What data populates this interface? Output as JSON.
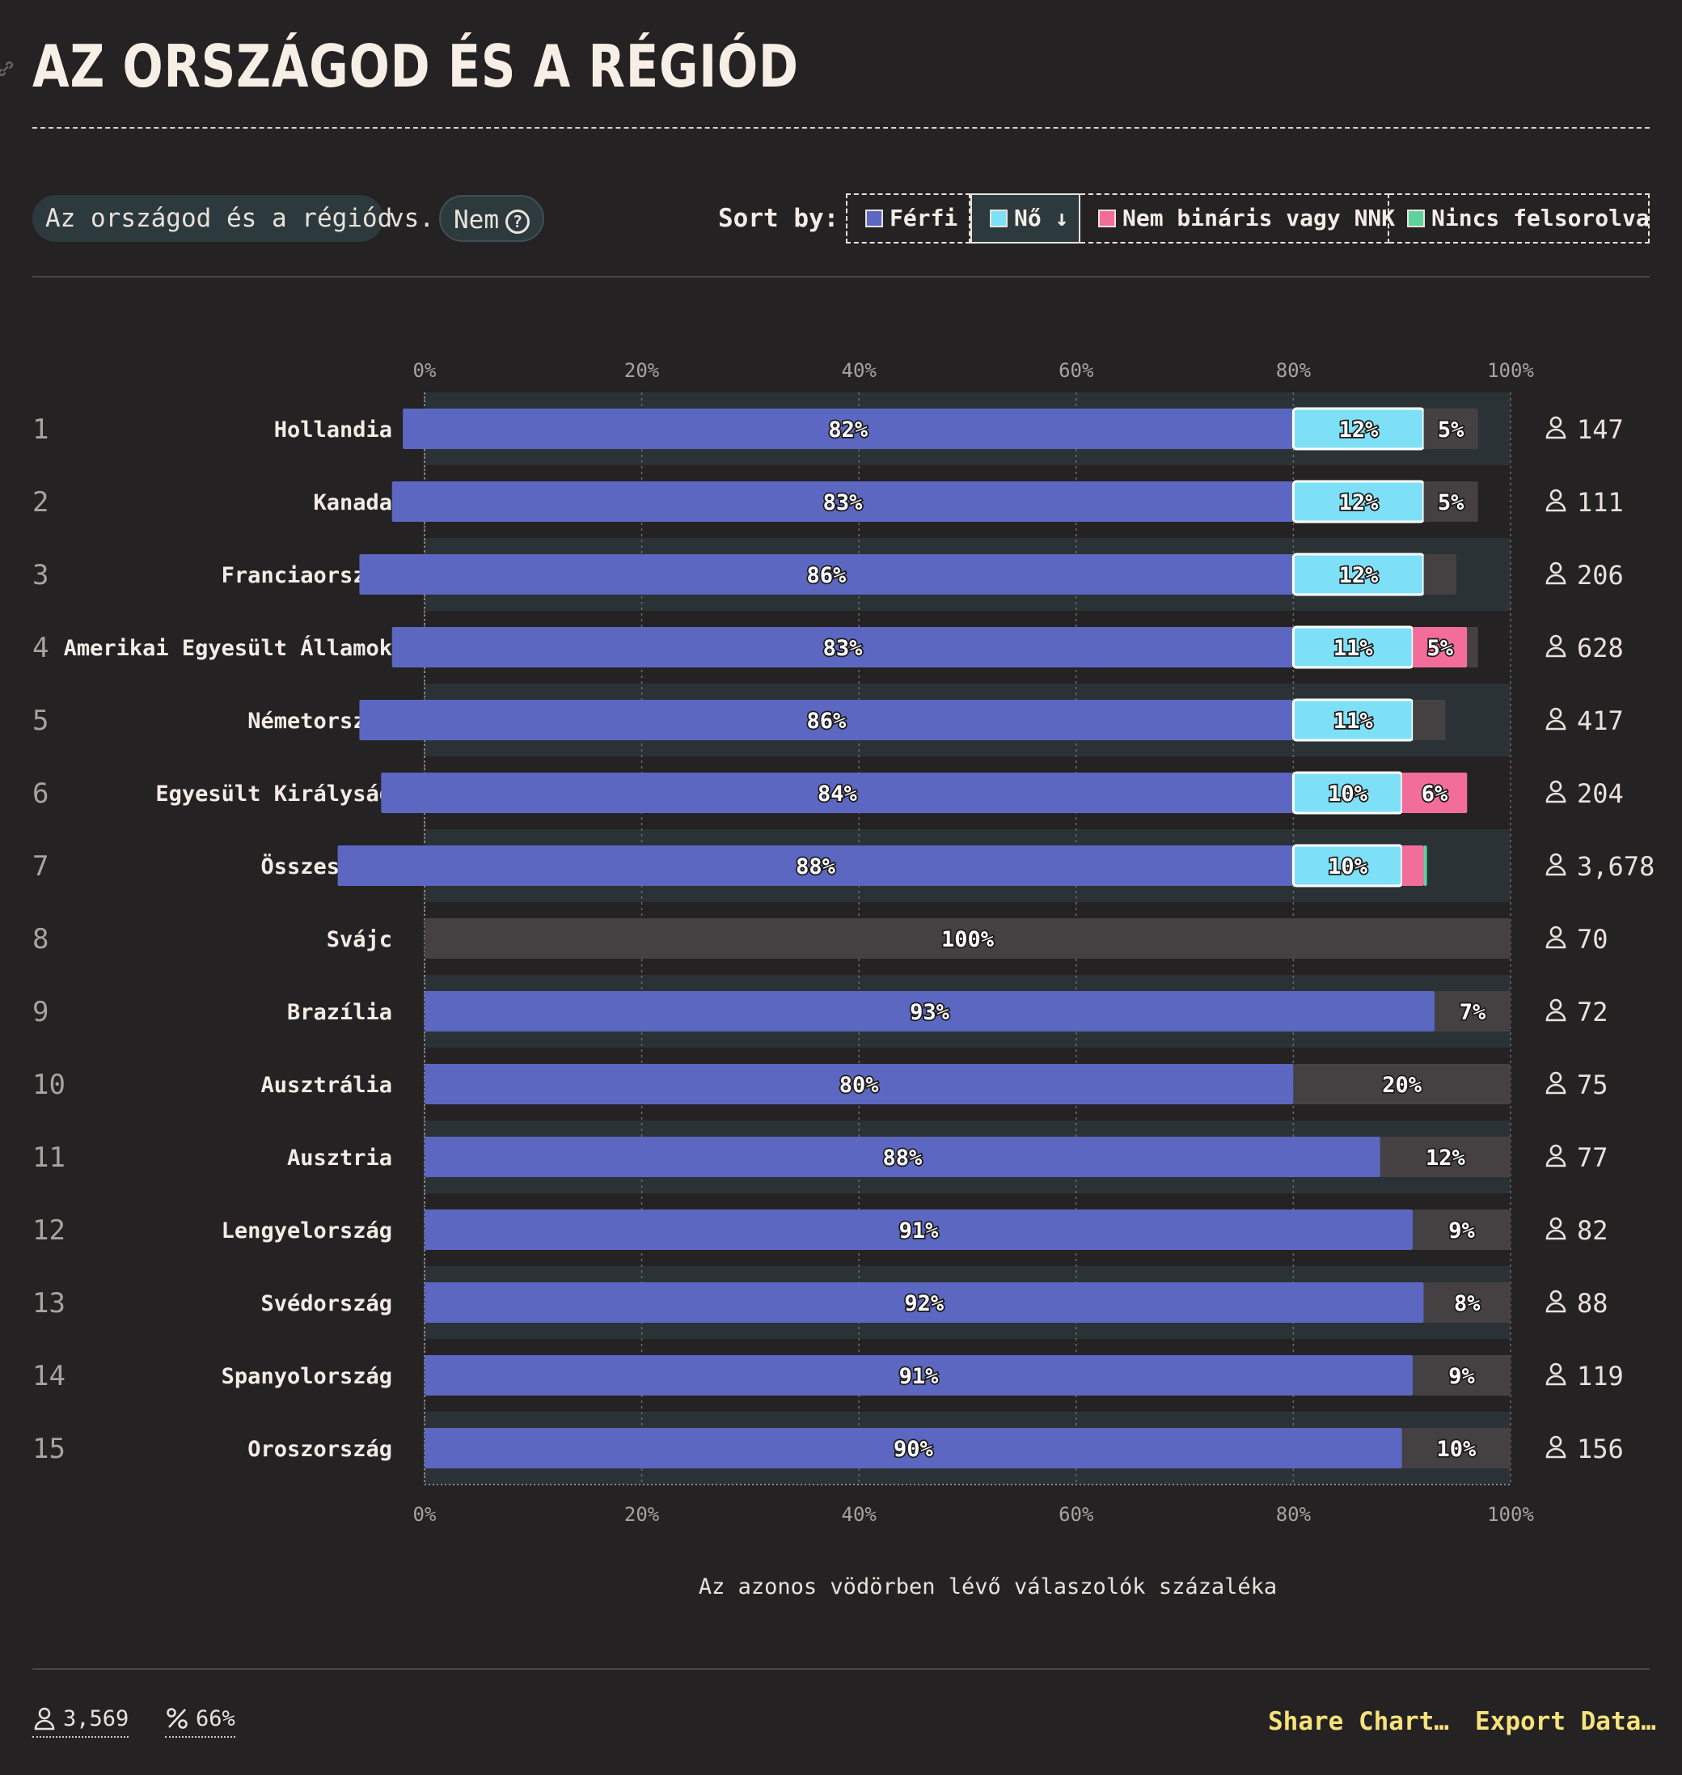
{
  "header": {
    "title": "AZ ORSZÁGOD ÉS A RÉGIÓD"
  },
  "controls": {
    "group_label": "Az országod és a régiód",
    "vs_label": "vs.",
    "compare_label": "Nem",
    "sort_label": "Sort by:",
    "sort_options": [
      {
        "label": "Férfi",
        "color": "#5b67c0",
        "active": false
      },
      {
        "label": "Nő ↓",
        "color": "#7ee0f7",
        "active": true
      },
      {
        "label": "Nem bináris vagy NNK",
        "color": "#f26d9a",
        "active": false
      },
      {
        "label": "Nincs felsorolva",
        "color": "#5ed19c",
        "active": false
      }
    ]
  },
  "chart_data": {
    "type": "bar",
    "stacked": true,
    "orientation": "horizontal",
    "xlabel": "Az azonos vödörben lévő válaszolók százaléka",
    "x_ticks": [
      "0%",
      "20%",
      "40%",
      "60%",
      "80%",
      "100%"
    ],
    "xlim": [
      0,
      100
    ],
    "categories": [
      "Hollandia",
      "Kanada",
      "Franciaország",
      "Amerikai Egyesült Államok",
      "Németország",
      "Egyesült Királyság",
      "Összesítés",
      "Svájc",
      "Brazília",
      "Ausztrália",
      "Ausztria",
      "Lengyelország",
      "Svédország",
      "Spanyolország",
      "Oroszország"
    ],
    "ranks": [
      "1",
      "2",
      "3",
      "4",
      "5",
      "6",
      "7",
      "8",
      "9",
      "10",
      "11",
      "12",
      "13",
      "14",
      "15"
    ],
    "respondents": [
      "147",
      "111",
      "206",
      "628",
      "417",
      "204",
      "3,678",
      "70",
      "72",
      "75",
      "77",
      "82",
      "88",
      "119",
      "156"
    ],
    "series": [
      {
        "name": "Férfi",
        "color": "#5b67c0",
        "values": [
          82,
          83,
          86,
          83,
          86,
          84,
          88,
          0,
          93,
          80,
          88,
          91,
          92,
          91,
          90
        ]
      },
      {
        "name": "Nő",
        "color": "#7ee0f7",
        "values": [
          12,
          12,
          12,
          11,
          11,
          10,
          10,
          0,
          0,
          0,
          0,
          0,
          0,
          0,
          0
        ]
      },
      {
        "name": "Nem bináris vagy NNK",
        "color": "#f26d9a",
        "values": [
          0,
          0,
          0,
          5,
          0,
          6,
          2,
          0,
          0,
          0,
          0,
          0,
          0,
          0,
          0
        ]
      },
      {
        "name": "Nincs felsorolva",
        "color": "#5ed19c",
        "values": [
          0,
          0,
          0,
          0,
          0,
          0,
          0.3,
          0,
          0,
          0,
          0,
          0,
          0,
          0,
          0
        ]
      },
      {
        "name": "",
        "color": "#454142",
        "values": [
          5,
          5,
          3,
          1,
          3,
          0,
          0,
          100,
          7,
          20,
          12,
          9,
          8,
          9,
          10
        ]
      }
    ],
    "labels": [
      [
        "82%",
        "12%",
        "",
        "",
        "5%"
      ],
      [
        "83%",
        "12%",
        "",
        "",
        "5%"
      ],
      [
        "86%",
        "12%",
        "",
        "",
        ""
      ],
      [
        "83%",
        "11%",
        "5%",
        "",
        ""
      ],
      [
        "86%",
        "11%",
        "",
        "",
        ""
      ],
      [
        "84%",
        "10%",
        "6%",
        "",
        ""
      ],
      [
        "88%",
        "10%",
        "",
        "",
        ""
      ],
      [
        "",
        "",
        "",
        "",
        "100%"
      ],
      [
        "93%",
        "",
        "",
        "",
        "7%"
      ],
      [
        "80%",
        "",
        "",
        "",
        "20%"
      ],
      [
        "88%",
        "",
        "",
        "",
        "12%"
      ],
      [
        "91%",
        "",
        "",
        "",
        "9%"
      ],
      [
        "92%",
        "",
        "",
        "",
        "8%"
      ],
      [
        "91%",
        "",
        "",
        "",
        "9%"
      ],
      [
        "90%",
        "",
        "",
        "",
        "10%"
      ]
    ],
    "grid": true
  },
  "footer": {
    "total_respondents": "3,569",
    "percent": "66%",
    "share_label": "Share Chart…",
    "export_label": "Export Data…"
  }
}
